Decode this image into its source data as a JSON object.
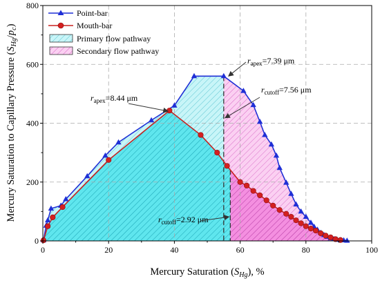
{
  "chart_data": {
    "type": "line",
    "xlabel": "Mercury Saturation (S_Hg), %",
    "ylabel": "Mercury Saturation to Capillary Pressure (S_Hg/p_c)",
    "xlim": [
      0,
      100
    ],
    "ylim": [
      0,
      800
    ],
    "x_ticks": [
      0,
      20,
      40,
      60,
      80,
      100
    ],
    "y_ticks": [
      0,
      200,
      400,
      600,
      800
    ],
    "grid": true,
    "legend_position": "top-left",
    "series": [
      {
        "name": "Point-bar",
        "color": "#1f2fd6",
        "marker": "triangle",
        "points": [
          [
            0.2,
            2
          ],
          [
            1.0,
            52
          ],
          [
            1.5,
            70
          ],
          [
            2.5,
            110
          ],
          [
            5.5,
            120
          ],
          [
            7.0,
            142
          ],
          [
            13.5,
            220
          ],
          [
            19.0,
            290
          ],
          [
            23.0,
            335
          ],
          [
            33.0,
            410
          ],
          [
            40.0,
            460
          ],
          [
            46.0,
            560
          ],
          [
            55.0,
            560
          ],
          [
            61.0,
            510
          ],
          [
            64.0,
            462
          ],
          [
            66.0,
            405
          ],
          [
            67.5,
            360
          ],
          [
            69.5,
            328
          ],
          [
            71.0,
            290
          ],
          [
            72.0,
            248
          ],
          [
            74.0,
            198
          ],
          [
            75.5,
            160
          ],
          [
            77.0,
            124
          ],
          [
            78.5,
            100
          ],
          [
            80.0,
            82
          ],
          [
            81.5,
            62
          ],
          [
            82.5,
            48
          ],
          [
            83.5,
            38
          ],
          [
            84.5,
            28
          ],
          [
            85.5,
            20
          ],
          [
            86.5,
            14
          ],
          [
            87.5,
            9
          ],
          [
            88.5,
            6
          ],
          [
            89.5,
            4
          ],
          [
            90.5,
            3
          ],
          [
            91.5,
            2
          ],
          [
            92.5,
            1
          ]
        ]
      },
      {
        "name": "Mouth-bar",
        "color": "#d42020",
        "marker": "circle",
        "points": [
          [
            0.2,
            2
          ],
          [
            1.5,
            50
          ],
          [
            3.0,
            80
          ],
          [
            6.0,
            115
          ],
          [
            20.0,
            275
          ],
          [
            38.5,
            443
          ],
          [
            48.0,
            360
          ],
          [
            53.0,
            300
          ],
          [
            56.0,
            255
          ],
          [
            60.0,
            200
          ],
          [
            62.0,
            188
          ],
          [
            64.0,
            170
          ],
          [
            66.0,
            155
          ],
          [
            68.0,
            138
          ],
          [
            70.0,
            120
          ],
          [
            72.0,
            105
          ],
          [
            74.0,
            92
          ],
          [
            75.5,
            82
          ],
          [
            77.0,
            70
          ],
          [
            78.5,
            60
          ],
          [
            80.0,
            50
          ],
          [
            81.5,
            42
          ],
          [
            83.0,
            35
          ],
          [
            84.5,
            26
          ],
          [
            86.0,
            18
          ],
          [
            87.5,
            12
          ],
          [
            89.0,
            6
          ],
          [
            90.5,
            3
          ]
        ]
      }
    ],
    "areas": [
      {
        "name": "Primary flow pathway",
        "color": "#3ddde8",
        "x_range": [
          0,
          55
        ]
      },
      {
        "name": "Secondary flow pathway",
        "color": "#f06ed8",
        "x_range": [
          55,
          92.5
        ]
      }
    ],
    "annotations": [
      {
        "r": "r",
        "sub": "apex",
        "value": "=8.44 μm",
        "x": 38.5,
        "y": 443
      },
      {
        "r": "r",
        "sub": "apex",
        "value": "=7.39 μm",
        "x": 55,
        "y": 560
      },
      {
        "r": "r",
        "sub": "cutoff",
        "value": "=7.56 μm",
        "x": 55,
        "y": 465
      },
      {
        "r": "r",
        "sub": "cutoff",
        "value": "=2.92 μm",
        "x": 57,
        "y": 70
      }
    ]
  },
  "colors": {
    "primary_fill": "#3ddde8",
    "secondary_fill": "#f06ed8",
    "dashed_line": "#333333"
  }
}
